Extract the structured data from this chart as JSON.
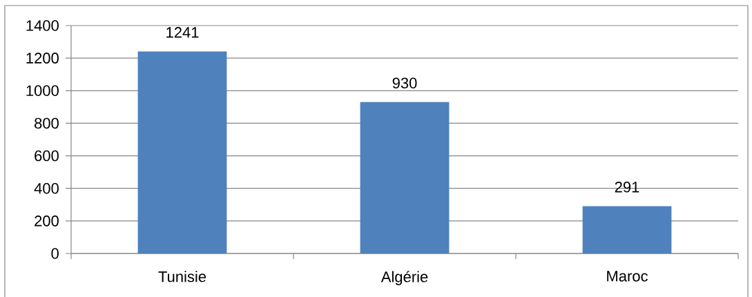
{
  "chart_data": {
    "type": "bar",
    "categories": [
      "Tunisie",
      "Algérie",
      "Maroc"
    ],
    "values": [
      1241,
      930,
      291
    ],
    "color": "#4f81bd",
    "ylim": [
      0,
      1400
    ],
    "yticks": [
      0,
      200,
      400,
      600,
      800,
      1000,
      1200,
      1400
    ],
    "grid": "y",
    "data_labels": true
  }
}
